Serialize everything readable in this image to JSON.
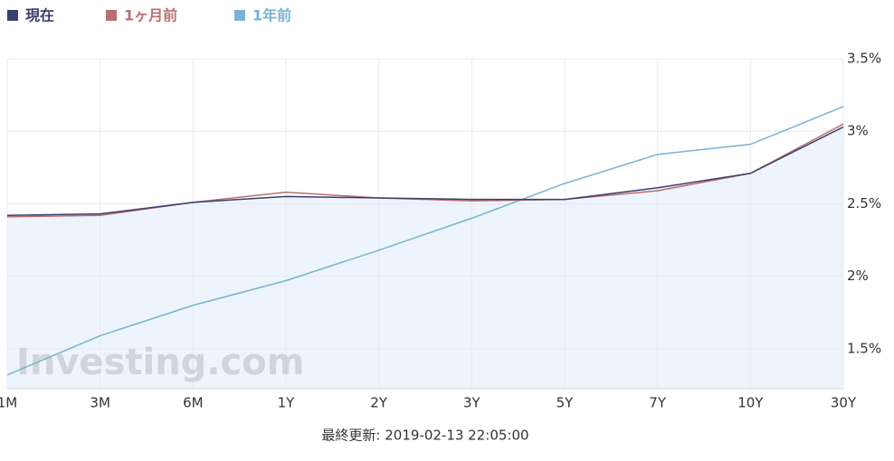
{
  "chart_data": {
    "type": "line",
    "categories": [
      "1M",
      "3M",
      "6M",
      "1Y",
      "2Y",
      "3Y",
      "5Y",
      "7Y",
      "10Y",
      "30Y"
    ],
    "series": [
      {
        "name": "現在",
        "color": "#3b3f6e",
        "fill": "#eef4fc",
        "values": [
          2.42,
          2.43,
          2.51,
          2.55,
          2.54,
          2.53,
          2.53,
          2.61,
          2.71,
          3.03
        ]
      },
      {
        "name": "1ヶ月前",
        "color": "#b96f6f",
        "values": [
          2.41,
          2.42,
          2.51,
          2.58,
          2.54,
          2.52,
          2.53,
          2.59,
          2.71,
          3.05
        ]
      },
      {
        "name": "1年前",
        "color": "#7ab3cf",
        "values": [
          1.32,
          1.59,
          1.8,
          1.97,
          2.18,
          2.4,
          2.64,
          2.84,
          2.91,
          3.17
        ]
      }
    ],
    "ylim": [
      1.225,
      3.5
    ],
    "yticks": [
      {
        "value": 1.5,
        "label": "1.5%"
      },
      {
        "value": 2,
        "label": "2%"
      },
      {
        "value": 2.5,
        "label": "2.5%"
      },
      {
        "value": 3,
        "label": "3%"
      },
      {
        "value": 3.5,
        "label": "3.5%"
      }
    ],
    "grid": true,
    "legend": "top-left",
    "watermark": "Investing.com",
    "footer": "最終更新: 2019-02-13 22:05:00"
  }
}
